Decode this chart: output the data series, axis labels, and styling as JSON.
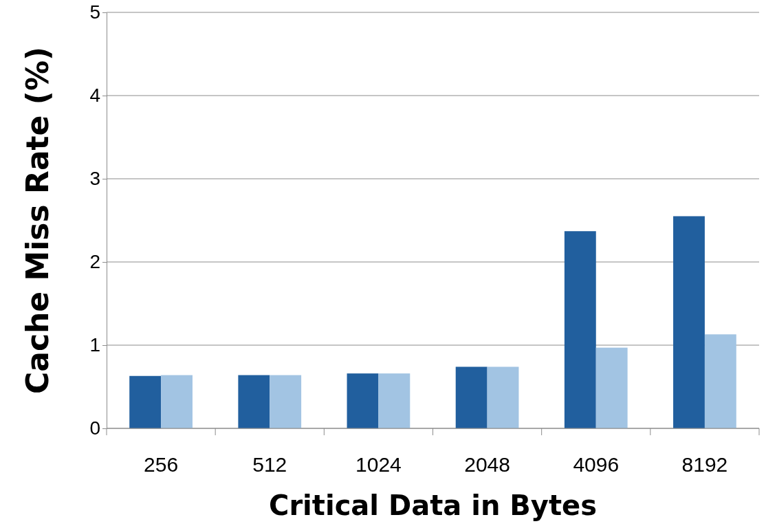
{
  "chart_data": {
    "type": "bar",
    "xlabel": "Critical Data in Bytes",
    "ylabel": "Cache Miss Rate (%)",
    "categories": [
      "256",
      "512",
      "1024",
      "2048",
      "4096",
      "8192"
    ],
    "series": [
      {
        "color": "#215f9e",
        "values": [
          0.63,
          0.64,
          0.66,
          0.74,
          2.37,
          2.55
        ]
      },
      {
        "color": "#a2c4e3",
        "values": [
          0.64,
          0.64,
          0.66,
          0.74,
          0.97,
          1.13
        ]
      }
    ],
    "ylim": [
      0,
      5
    ],
    "yticks": [
      0,
      1,
      2,
      3,
      4,
      5
    ],
    "grid": "y"
  }
}
